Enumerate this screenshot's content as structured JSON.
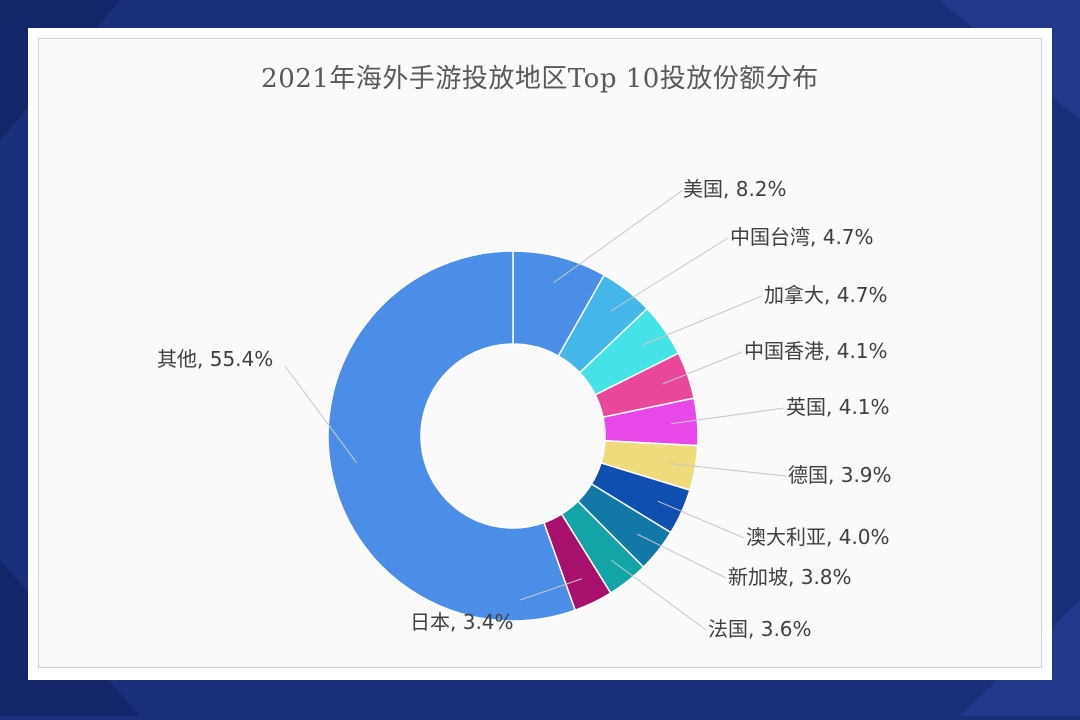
{
  "chart_data": {
    "type": "pie",
    "variant": "donut",
    "title": "2021年海外手游投放地区Top 10投放份额分布",
    "slices": [
      {
        "label": "美国",
        "value": 8.2,
        "color": "#4a8ee8"
      },
      {
        "label": "中国台湾",
        "value": 4.7,
        "color": "#45b6ea"
      },
      {
        "label": "加拿大",
        "value": 4.7,
        "color": "#45e3e8"
      },
      {
        "label": "中国香港",
        "value": 4.1,
        "color": "#e8479a"
      },
      {
        "label": "英国",
        "value": 4.1,
        "color": "#e848e8"
      },
      {
        "label": "德国",
        "value": 3.9,
        "color": "#efdb7c"
      },
      {
        "label": "澳大利亚",
        "value": 4.0,
        "color": "#0f4fb0"
      },
      {
        "label": "新加坡",
        "value": 3.8,
        "color": "#1278a8"
      },
      {
        "label": "法国",
        "value": 3.6,
        "color": "#13a5a5"
      },
      {
        "label": "日本",
        "value": 3.4,
        "color": "#a8106e"
      },
      {
        "label": "其他",
        "value": 55.4,
        "color": "#4a8ee8"
      }
    ],
    "label_format": "{label}, {value}%"
  }
}
